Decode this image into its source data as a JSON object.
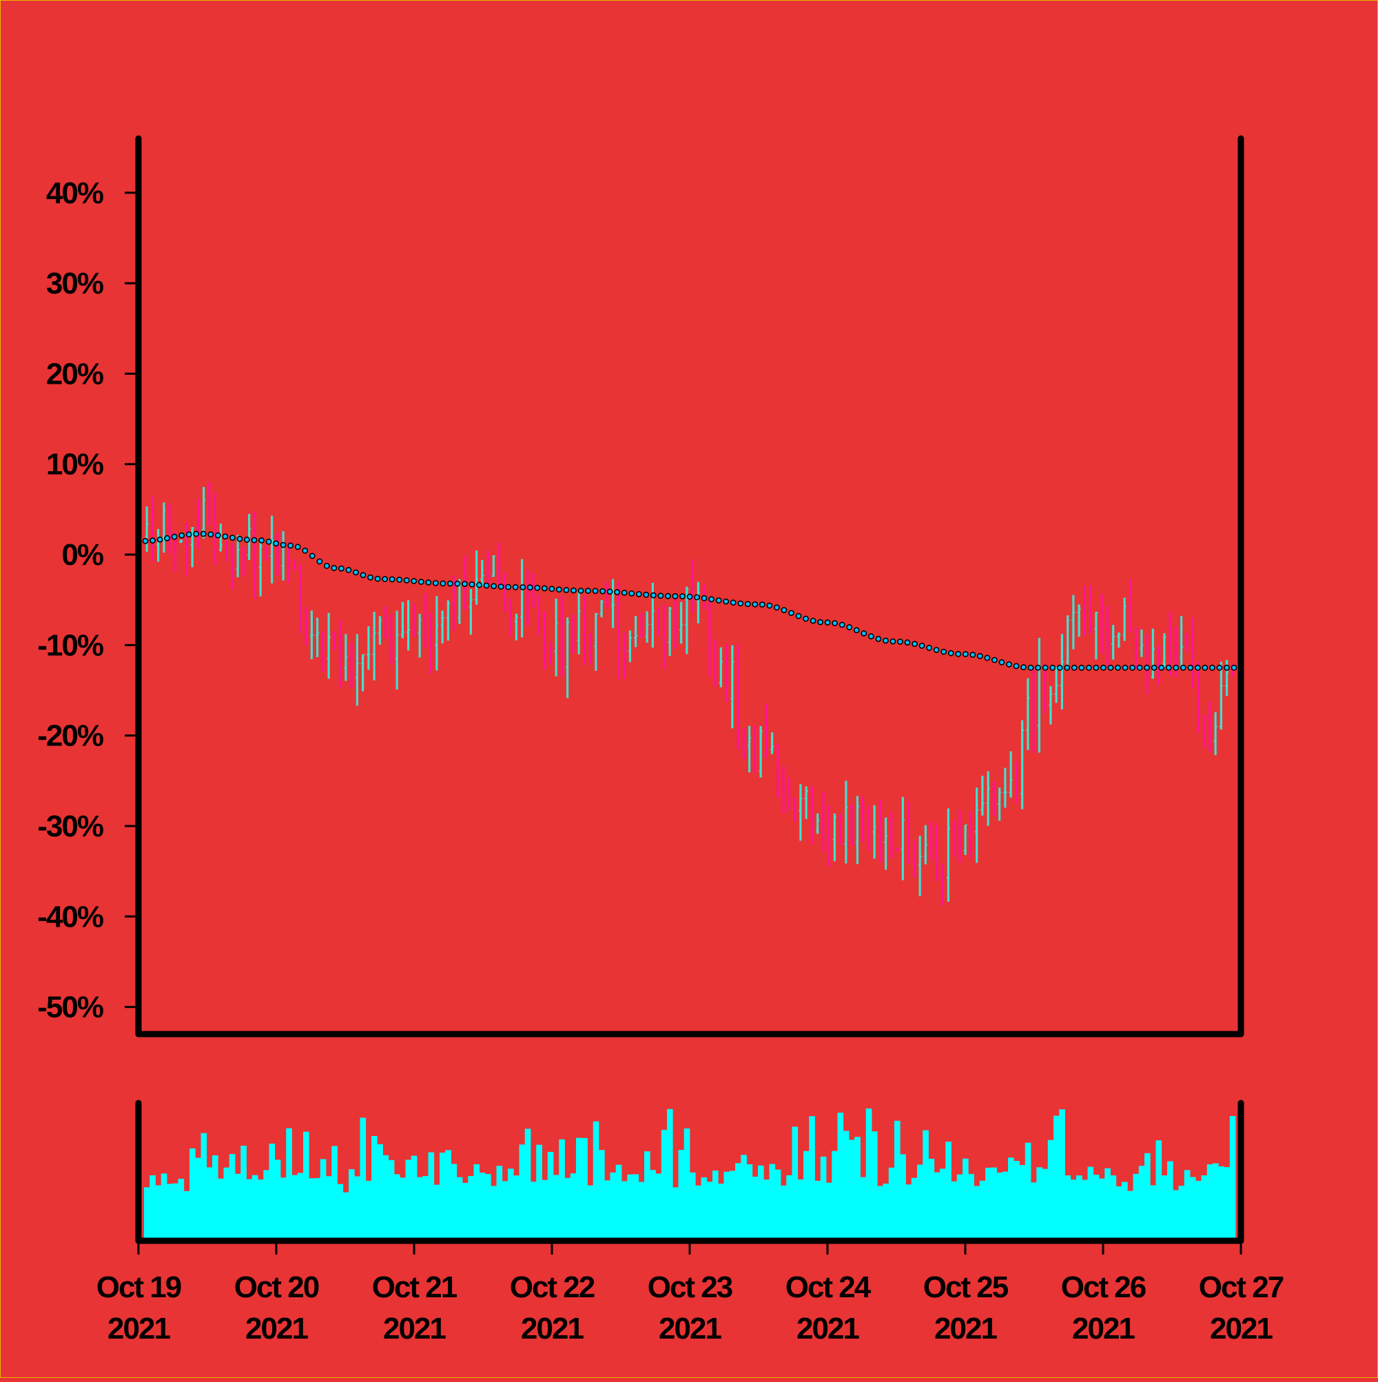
{
  "chart_data": {
    "type": "ohlc",
    "background": "#e83434",
    "colors": {
      "up": "#40e0d0",
      "down": "#ff1493",
      "volume": "#00ffff",
      "trend_line": "#00bfff",
      "trend_edge": "#000000"
    },
    "price_axis": {
      "ylim": [
        -53,
        46
      ],
      "ticks": [
        40,
        30,
        20,
        10,
        0,
        -10,
        -20,
        -30,
        -40,
        -50
      ],
      "tick_labels": [
        "40%",
        "30%",
        "20%",
        "10%",
        "0%",
        "-10%",
        "-20%",
        "-30%",
        "-40%",
        "-50%"
      ]
    },
    "x_axis": {
      "start": "2021-10-19",
      "end": "2021-10-27",
      "ticks": [
        "2021-10-19",
        "2021-10-20",
        "2021-10-21",
        "2021-10-22",
        "2021-10-23",
        "2021-10-24",
        "2021-10-25",
        "2021-10-26",
        "2021-10-27"
      ],
      "tick_labels": [
        {
          "line1": "Oct 19",
          "line2": "2021"
        },
        {
          "line1": "Oct 20",
          "line2": "2021"
        },
        {
          "line1": "Oct 21",
          "line2": "2021"
        },
        {
          "line1": "Oct 22",
          "line2": "2021"
        },
        {
          "line1": "Oct 23",
          "line2": "2021"
        },
        {
          "line1": "Oct 24",
          "line2": "2021"
        },
        {
          "line1": "Oct 25",
          "line2": "2021"
        },
        {
          "line1": "Oct 26",
          "line2": "2021"
        },
        {
          "line1": "Oct 27",
          "line2": "2021"
        }
      ]
    },
    "bar_interval_hours": 1,
    "close_path_percent": [
      [
        0,
        2
      ],
      [
        8,
        4
      ],
      [
        16,
        1
      ],
      [
        24,
        -1
      ],
      [
        30,
        -8
      ],
      [
        36,
        -12
      ],
      [
        44,
        -9
      ],
      [
        54,
        -7
      ],
      [
        60,
        -1
      ],
      [
        66,
        -6
      ],
      [
        72,
        -10
      ],
      [
        82,
        -8
      ],
      [
        90,
        -7
      ],
      [
        96,
        -5
      ],
      [
        102,
        -13
      ],
      [
        108,
        -22
      ],
      [
        115,
        -28
      ],
      [
        120,
        -32
      ],
      [
        126,
        -30
      ],
      [
        132,
        -31
      ],
      [
        138,
        -34
      ],
      [
        144,
        -31
      ],
      [
        152,
        -25
      ],
      [
        158,
        -15
      ],
      [
        164,
        -8
      ],
      [
        170,
        -7
      ],
      [
        176,
        -11
      ],
      [
        182,
        -11
      ],
      [
        188,
        -18
      ],
      [
        194,
        -12
      ],
      [
        200,
        -10
      ],
      [
        206,
        -8
      ],
      [
        212,
        -9
      ],
      [
        218,
        -6
      ],
      [
        224,
        -6
      ],
      [
        230,
        -6
      ],
      [
        235,
        -5
      ],
      [
        240,
        -4
      ]
    ],
    "trend_line_percent": [
      [
        0,
        1.5
      ],
      [
        10,
        2.3
      ],
      [
        20,
        1.6
      ],
      [
        26,
        1.0
      ],
      [
        34,
        -1.5
      ],
      [
        42,
        -2.7
      ],
      [
        54,
        -3.2
      ],
      [
        66,
        -3.6
      ],
      [
        78,
        -4.0
      ],
      [
        94,
        -4.6
      ],
      [
        108,
        -5.5
      ],
      [
        120,
        -7.5
      ],
      [
        132,
        -9.6
      ],
      [
        144,
        -11.0
      ],
      [
        156,
        -12.5
      ],
      [
        168,
        -12.5
      ],
      [
        180,
        -12.5
      ],
      [
        192,
        -12.5
      ],
      [
        204,
        -12.3
      ],
      [
        216,
        -12.1
      ],
      [
        228,
        -11.7
      ],
      [
        240,
        -11.5
      ]
    ],
    "volume_range": [
      0.18,
      1.0
    ]
  }
}
